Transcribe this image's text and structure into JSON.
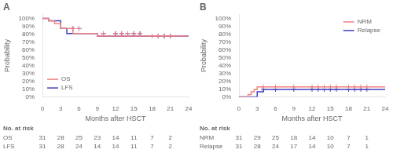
{
  "chart_data": [
    {
      "type": "step",
      "title": "A",
      "xlabel": "Months after HSCT",
      "ylabel": "Probability",
      "xlim": [
        0,
        24
      ],
      "ylim": [
        0,
        1.05
      ],
      "xticks": [
        0,
        3,
        6,
        9,
        12,
        15,
        18,
        21,
        24
      ],
      "yticks": [
        {
          "value": 0.0,
          "label": "0%"
        },
        {
          "value": 0.1,
          "label": "10%"
        },
        {
          "value": 0.2,
          "label": "20%"
        },
        {
          "value": 0.3,
          "label": "30%"
        },
        {
          "value": 0.4,
          "label": "40%"
        },
        {
          "value": 0.5,
          "label": "50%"
        },
        {
          "value": 0.6,
          "label": "60%"
        },
        {
          "value": 0.7,
          "label": "70%"
        },
        {
          "value": 0.8,
          "label": "80%"
        },
        {
          "value": 0.9,
          "label": "90%"
        },
        {
          "value": 1.0,
          "label": "100%"
        }
      ],
      "grid": false,
      "legend": "lower left",
      "series": [
        {
          "name": "OS",
          "color": "#f08080",
          "marker": "plus",
          "x": [
            0,
            1,
            1,
            2,
            2,
            3,
            3,
            5,
            5,
            9,
            9,
            24
          ],
          "values": [
            1.0,
            1.0,
            0.968,
            0.968,
            0.935,
            0.935,
            0.871,
            0.871,
            0.806,
            0.806,
            0.774,
            0.774
          ],
          "censor_x": [
            5,
            6,
            10,
            12,
            13,
            14,
            15,
            16,
            18,
            19,
            20,
            21
          ],
          "censor_values": [
            0.871,
            0.871,
            0.806,
            0.806,
            0.806,
            0.806,
            0.806,
            0.806,
            0.774,
            0.774,
            0.774,
            0.774
          ]
        },
        {
          "name": "LFS",
          "color": "#4040c0",
          "marker": "plus",
          "x": [
            0,
            1,
            1,
            3,
            3,
            4,
            4,
            9,
            9,
            24
          ],
          "values": [
            1.0,
            1.0,
            0.968,
            0.968,
            0.871,
            0.871,
            0.806,
            0.806,
            0.774,
            0.774
          ],
          "censor_x": [
            5,
            6,
            10,
            12,
            13,
            14,
            15,
            16,
            18,
            19,
            20,
            21
          ],
          "censor_values": [
            0.871,
            0.871,
            0.806,
            0.806,
            0.806,
            0.806,
            0.806,
            0.806,
            0.774,
            0.774,
            0.774,
            0.774
          ]
        }
      ],
      "at_risk": {
        "label": "No. at risk",
        "x": [
          0,
          3,
          6,
          9,
          12,
          15,
          18,
          21
        ],
        "rows": [
          {
            "name": "OS",
            "values": [
              31,
              28,
              25,
              23,
              14,
              11,
              7,
              2
            ]
          },
          {
            "name": "LFS",
            "values": [
              31,
              28,
              24,
              14,
              14,
              11,
              7,
              2
            ]
          }
        ]
      }
    },
    {
      "type": "step",
      "title": "B",
      "xlabel": "Months after HSCT",
      "ylabel": "Probability",
      "xlim": [
        0,
        24
      ],
      "ylim": [
        0,
        1.05
      ],
      "xticks": [
        0,
        3,
        6,
        9,
        12,
        15,
        18,
        21,
        24
      ],
      "yticks": [
        {
          "value": 0.0,
          "label": "0%"
        },
        {
          "value": 0.1,
          "label": "10%"
        },
        {
          "value": 0.2,
          "label": "20%"
        },
        {
          "value": 0.3,
          "label": "30%"
        },
        {
          "value": 0.4,
          "label": "40%"
        },
        {
          "value": 0.5,
          "label": "50%"
        },
        {
          "value": 0.6,
          "label": "60%"
        },
        {
          "value": 0.7,
          "label": "70%"
        },
        {
          "value": 0.8,
          "label": "80%"
        },
        {
          "value": 0.9,
          "label": "90%"
        },
        {
          "value": 1.0,
          "label": "100%"
        }
      ],
      "grid": false,
      "legend": "upper right",
      "series": [
        {
          "name": "NRM",
          "color": "#f08080",
          "marker": "plus",
          "x": [
            0,
            1.5,
            1.5,
            2,
            2,
            2.5,
            2.5,
            3,
            3,
            24
          ],
          "values": [
            0.0,
            0.0,
            0.032,
            0.032,
            0.065,
            0.065,
            0.097,
            0.097,
            0.129,
            0.129
          ],
          "censor_x": [
            4,
            6,
            9,
            12,
            13,
            14,
            15,
            16,
            18,
            19,
            20,
            21
          ],
          "censor_values": [
            0.129,
            0.129,
            0.129,
            0.129,
            0.129,
            0.129,
            0.129,
            0.129,
            0.129,
            0.129,
            0.129,
            0.129
          ]
        },
        {
          "name": "Relapse",
          "color": "#4040c0",
          "marker": "plus",
          "x": [
            0,
            3,
            3,
            4,
            4,
            24
          ],
          "values": [
            0.0,
            0.0,
            0.065,
            0.065,
            0.097,
            0.097
          ],
          "censor_x": [
            4,
            6,
            9,
            12,
            13,
            14,
            15,
            16,
            18,
            19,
            20,
            21
          ],
          "censor_values": [
            0.097,
            0.097,
            0.097,
            0.097,
            0.097,
            0.097,
            0.097,
            0.097,
            0.097,
            0.097,
            0.097,
            0.097
          ]
        }
      ],
      "at_risk": {
        "label": "No. at risk",
        "x": [
          0,
          3,
          6,
          9,
          12,
          15,
          18,
          21
        ],
        "rows": [
          {
            "name": "NRM",
            "values": [
              31,
              29,
              25,
              18,
              14,
              10,
              7,
              1
            ]
          },
          {
            "name": "Relapse",
            "values": [
              31,
              28,
              24,
              17,
              14,
              10,
              7,
              1
            ]
          }
        ]
      }
    }
  ]
}
